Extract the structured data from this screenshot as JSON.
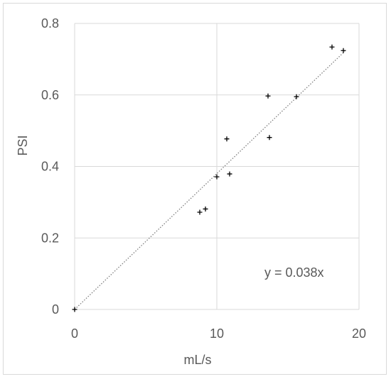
{
  "chart_data": {
    "type": "scatter",
    "xlabel": "mL/s",
    "ylabel": "PSI",
    "xlim": [
      0,
      20
    ],
    "ylim": [
      0,
      0.8
    ],
    "xticks": [
      "0",
      "10",
      "20"
    ],
    "yticks": [
      "0",
      "0.2",
      "0.4",
      "0.6",
      "0.8"
    ],
    "grid": true,
    "points": [
      {
        "x": 0,
        "y": 0
      },
      {
        "x": 8.8,
        "y": 0.272
      },
      {
        "x": 9.2,
        "y": 0.281
      },
      {
        "x": 10.0,
        "y": 0.371
      },
      {
        "x": 10.7,
        "y": 0.477
      },
      {
        "x": 10.9,
        "y": 0.379
      },
      {
        "x": 13.6,
        "y": 0.597
      },
      {
        "x": 13.7,
        "y": 0.481
      },
      {
        "x": 15.6,
        "y": 0.595
      },
      {
        "x": 18.1,
        "y": 0.734
      },
      {
        "x": 18.9,
        "y": 0.724
      }
    ],
    "trendline": {
      "slope": 0.038,
      "label": "y = 0.038x",
      "x_range": [
        0,
        19
      ]
    },
    "colors": {
      "marker": "#000000",
      "grid": "#d9d9d9",
      "trendline": "#7f7f7f",
      "text": "#595959"
    }
  }
}
